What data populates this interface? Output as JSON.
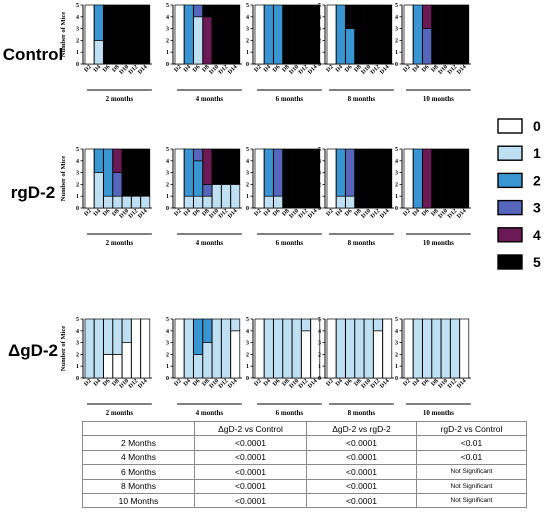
{
  "chart_data": {
    "type": "bar",
    "stacked": true,
    "days": [
      "D2",
      "D4",
      "D6",
      "D8",
      "D10",
      "D12",
      "D14"
    ],
    "periods": [
      "2 months",
      "4 months",
      "6 months",
      "8 months",
      "10 months"
    ],
    "ylabel": "Number of Mice",
    "ylim": [
      0,
      5
    ],
    "yticks": [
      0,
      1,
      2,
      3,
      4,
      5
    ],
    "legend": {
      "placement": "right",
      "scores": [
        "0",
        "1",
        "2",
        "3",
        "4",
        "5"
      ],
      "colors": [
        "#ffffff",
        "#bfe0f3",
        "#3a95d3",
        "#5566bb",
        "#6b1a55",
        "#000000"
      ]
    },
    "groups": [
      {
        "label": "Control",
        "panels": [
          [
            [
              5,
              0,
              0,
              0,
              0,
              0
            ],
            [
              0,
              2,
              3,
              0,
              0,
              0
            ],
            [
              0,
              0,
              0,
              0,
              0,
              5
            ],
            [
              0,
              0,
              0,
              0,
              0,
              5
            ],
            [
              0,
              0,
              0,
              0,
              0,
              5
            ],
            [
              0,
              0,
              0,
              0,
              0,
              5
            ],
            [
              0,
              0,
              0,
              0,
              0,
              5
            ]
          ],
          [
            [
              5,
              0,
              0,
              0,
              0,
              0
            ],
            [
              0,
              0,
              5,
              0,
              0,
              0
            ],
            [
              0,
              4,
              0,
              1,
              0,
              0
            ],
            [
              0,
              0,
              0,
              0,
              4,
              1
            ],
            [
              0,
              0,
              0,
              0,
              0,
              5
            ],
            [
              0,
              0,
              0,
              0,
              0,
              5
            ],
            [
              0,
              0,
              0,
              0,
              0,
              5
            ]
          ],
          [
            [
              5,
              0,
              0,
              0,
              0,
              0
            ],
            [
              0,
              0,
              5,
              0,
              0,
              0
            ],
            [
              0,
              0,
              5,
              0,
              0,
              0
            ],
            [
              0,
              0,
              0,
              0,
              0,
              5
            ],
            [
              0,
              0,
              0,
              0,
              0,
              5
            ],
            [
              0,
              0,
              0,
              0,
              0,
              5
            ],
            [
              0,
              0,
              0,
              0,
              0,
              5
            ]
          ],
          [
            [
              5,
              0,
              0,
              0,
              0,
              0
            ],
            [
              0,
              0,
              5,
              0,
              0,
              0
            ],
            [
              0,
              0,
              3,
              0,
              0,
              2
            ],
            [
              0,
              0,
              0,
              0,
              0,
              5
            ],
            [
              0,
              0,
              0,
              0,
              0,
              5
            ],
            [
              0,
              0,
              0,
              0,
              0,
              5
            ],
            [
              0,
              0,
              0,
              0,
              0,
              5
            ]
          ],
          [
            [
              5,
              0,
              0,
              0,
              0,
              0
            ],
            [
              0,
              0,
              5,
              0,
              0,
              0
            ],
            [
              0,
              0,
              0,
              3,
              2,
              0
            ],
            [
              0,
              0,
              0,
              0,
              0,
              5
            ],
            [
              0,
              0,
              0,
              0,
              0,
              5
            ],
            [
              0,
              0,
              0,
              0,
              0,
              5
            ],
            [
              0,
              0,
              0,
              0,
              0,
              5
            ]
          ]
        ]
      },
      {
        "label": "rgD-2",
        "panels": [
          [
            [
              5,
              0,
              0,
              0,
              0,
              0
            ],
            [
              0,
              3,
              2,
              0,
              0,
              0
            ],
            [
              0,
              1,
              4,
              0,
              0,
              0
            ],
            [
              0,
              1,
              0,
              2,
              2,
              0
            ],
            [
              0,
              1,
              0,
              0,
              0,
              4
            ],
            [
              0,
              1,
              0,
              0,
              0,
              4
            ],
            [
              0,
              1,
              0,
              0,
              0,
              4
            ]
          ],
          [
            [
              5,
              0,
              0,
              0,
              0,
              0
            ],
            [
              0,
              1,
              4,
              0,
              0,
              0
            ],
            [
              0,
              1,
              3,
              1,
              0,
              0
            ],
            [
              0,
              1,
              0,
              1,
              3,
              0
            ],
            [
              0,
              2,
              0,
              0,
              0,
              3
            ],
            [
              0,
              2,
              0,
              0,
              0,
              3
            ],
            [
              0,
              2,
              0,
              0,
              0,
              3
            ]
          ],
          [
            [
              5,
              0,
              0,
              0,
              0,
              0
            ],
            [
              0,
              1,
              4,
              0,
              0,
              0
            ],
            [
              0,
              1,
              0,
              4,
              0,
              0
            ],
            [
              0,
              0,
              0,
              0,
              0,
              5
            ],
            [
              0,
              0,
              0,
              0,
              0,
              5
            ],
            [
              0,
              0,
              0,
              0,
              0,
              5
            ],
            [
              0,
              0,
              0,
              0,
              0,
              5
            ]
          ],
          [
            [
              5,
              0,
              0,
              0,
              0,
              0
            ],
            [
              0,
              1,
              4,
              0,
              0,
              0
            ],
            [
              0,
              1,
              0,
              4,
              0,
              0
            ],
            [
              0,
              0,
              0,
              0,
              0,
              5
            ],
            [
              0,
              0,
              0,
              0,
              0,
              5
            ],
            [
              0,
              0,
              0,
              0,
              0,
              5
            ],
            [
              0,
              0,
              0,
              0,
              0,
              5
            ]
          ],
          [
            [
              5,
              0,
              0,
              0,
              0,
              0
            ],
            [
              0,
              0,
              5,
              0,
              0,
              0
            ],
            [
              0,
              0,
              0,
              0,
              5,
              0
            ],
            [
              0,
              0,
              0,
              0,
              0,
              5
            ],
            [
              0,
              0,
              0,
              0,
              0,
              5
            ],
            [
              0,
              0,
              0,
              0,
              0,
              5
            ],
            [
              0,
              0,
              0,
              0,
              0,
              5
            ]
          ]
        ]
      },
      {
        "label": "ΔgD-2",
        "panels": [
          [
            [
              0,
              5,
              0,
              0,
              0,
              0
            ],
            [
              0,
              5,
              0,
              0,
              0,
              0
            ],
            [
              2,
              3,
              0,
              0,
              0,
              0
            ],
            [
              2,
              3,
              0,
              0,
              0,
              0
            ],
            [
              3,
              2,
              0,
              0,
              0,
              0
            ],
            [
              5,
              0,
              0,
              0,
              0,
              0
            ],
            [
              5,
              0,
              0,
              0,
              0,
              0
            ]
          ],
          [
            [
              5,
              0,
              0,
              0,
              0,
              0
            ],
            [
              0,
              5,
              0,
              0,
              0,
              0
            ],
            [
              0,
              2,
              3,
              0,
              0,
              0
            ],
            [
              0,
              3,
              2,
              0,
              0,
              0
            ],
            [
              0,
              5,
              0,
              0,
              0,
              0
            ],
            [
              0,
              5,
              0,
              0,
              0,
              0
            ],
            [
              4,
              1,
              0,
              0,
              0,
              0
            ]
          ],
          [
            [
              5,
              0,
              0,
              0,
              0,
              0
            ],
            [
              0,
              5,
              0,
              0,
              0,
              0
            ],
            [
              0,
              5,
              0,
              0,
              0,
              0
            ],
            [
              0,
              5,
              0,
              0,
              0,
              0
            ],
            [
              0,
              5,
              0,
              0,
              0,
              0
            ],
            [
              4,
              1,
              0,
              0,
              0,
              0
            ],
            [
              5,
              0,
              0,
              0,
              0,
              0
            ]
          ],
          [
            [
              5,
              0,
              0,
              0,
              0,
              0
            ],
            [
              0,
              5,
              0,
              0,
              0,
              0
            ],
            [
              0,
              5,
              0,
              0,
              0,
              0
            ],
            [
              0,
              5,
              0,
              0,
              0,
              0
            ],
            [
              0,
              5,
              0,
              0,
              0,
              0
            ],
            [
              4,
              1,
              0,
              0,
              0,
              0
            ],
            [
              5,
              0,
              0,
              0,
              0,
              0
            ]
          ],
          [
            [
              5,
              0,
              0,
              0,
              0,
              0
            ],
            [
              0,
              5,
              0,
              0,
              0,
              0
            ],
            [
              0,
              5,
              0,
              0,
              0,
              0
            ],
            [
              0,
              5,
              0,
              0,
              0,
              0
            ],
            [
              0,
              5,
              0,
              0,
              0,
              0
            ],
            [
              0,
              5,
              0,
              0,
              0,
              0
            ],
            [
              5,
              0,
              0,
              0,
              0,
              0
            ]
          ]
        ]
      }
    ]
  },
  "table": {
    "headers": [
      "",
      "ΔgD-2 vs Control",
      "ΔgD-2 vs rgD-2",
      "rgD-2 vs Control"
    ],
    "rows": [
      [
        "2 Months",
        "<0.0001",
        "<0.0001",
        "<0.01"
      ],
      [
        "4 Months",
        "<0.0001",
        "<0.0001",
        "<0.01"
      ],
      [
        "6 Months",
        "<0.0001",
        "<0.0001",
        "Not Significant"
      ],
      [
        "8 Months",
        "<0.0001",
        "<0.0001",
        "Not Significant"
      ],
      [
        "10 Months",
        "<0.0001",
        "<0.0001",
        "Not Significant"
      ]
    ]
  }
}
